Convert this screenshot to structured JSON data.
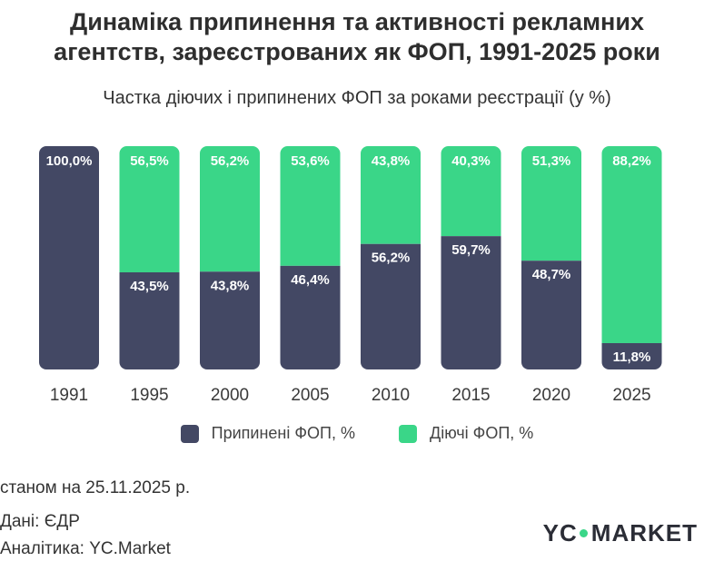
{
  "title_line1": "Динаміка припинення та активності рекламних",
  "title_line2": "агентств, зареєстрованих як ФОП, 1991-2025 роки",
  "subtitle": "Частка діючих і припинених ФОП за роками реєстрації (у %)",
  "chart_data": {
    "type": "bar",
    "stacked": true,
    "categories": [
      "1991",
      "1995",
      "2000",
      "2005",
      "2010",
      "2015",
      "2020",
      "2025"
    ],
    "series": [
      {
        "name": "Припинені ФОП, %",
        "color": "#434864",
        "values": [
          100.0,
          43.5,
          43.8,
          46.4,
          56.2,
          59.7,
          48.7,
          11.8
        ],
        "labels": [
          "100,0%",
          "43,5%",
          "43,8%",
          "46,4%",
          "56,2%",
          "59,7%",
          "48,7%",
          "11,8%"
        ]
      },
      {
        "name": "Діючі ФОП, %",
        "color": "#3ad688",
        "values": [
          0,
          56.5,
          56.2,
          53.6,
          43.8,
          40.3,
          51.3,
          88.2
        ],
        "labels": [
          "",
          "56,5%",
          "56,2%",
          "53,6%",
          "43,8%",
          "40,3%",
          "51,3%",
          "88,2%"
        ]
      }
    ],
    "ylim": [
      0,
      100
    ]
  },
  "legend": {
    "stopped": "Припинені ФОП, %",
    "active": "Діючі ФОП, %"
  },
  "colors": {
    "stopped": "#434864",
    "active": "#3ad688"
  },
  "footer": {
    "date": "станом на 25.11.2025 р.",
    "source": "Дані: ЄДР",
    "analytics": "Аналітика: YC.Market"
  },
  "logo": {
    "left": "YC",
    "right": "MARKET"
  }
}
